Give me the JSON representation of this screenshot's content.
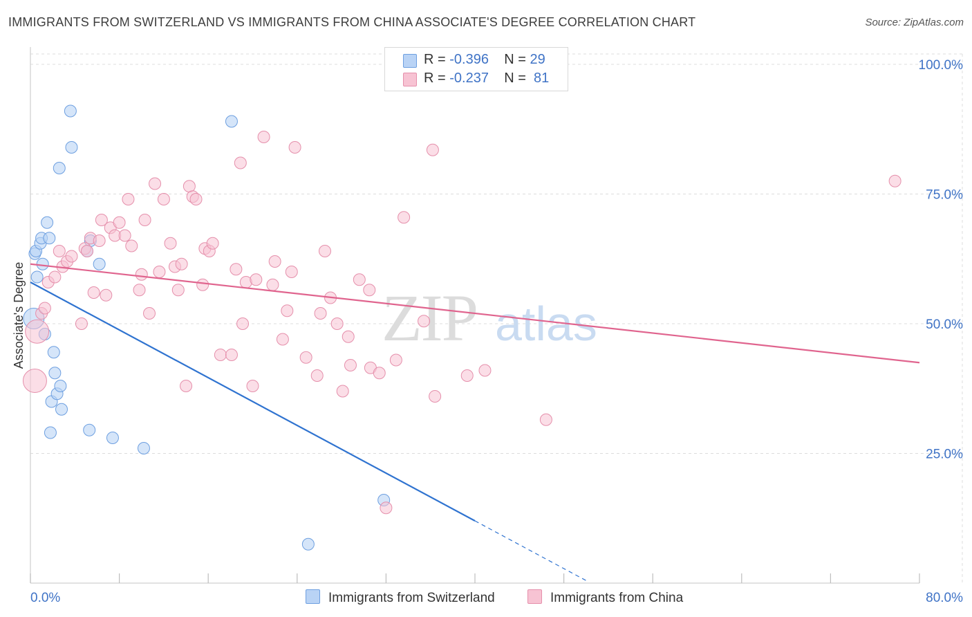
{
  "title": "IMMIGRANTS FROM SWITZERLAND VS IMMIGRANTS FROM CHINA ASSOCIATE'S DEGREE CORRELATION CHART",
  "source": "Source: ZipAtlas.com",
  "watermark": {
    "zip": "ZIP",
    "atlas": "atlas"
  },
  "legend": {
    "rows": [
      {
        "r_label": "R = ",
        "r_value": "-0.396",
        "n_label": "N = ",
        "n_value": "29"
      },
      {
        "r_label": "R = ",
        "r_value": "-0.237",
        "n_label": "N = ",
        "n_value": "81"
      }
    ]
  },
  "colors": {
    "switzerland_fill": "#b9d3f5",
    "switzerland_stroke": "#6d9fe0",
    "switzerland_line": "#2f73d0",
    "china_fill": "#f7c3d3",
    "china_stroke": "#e58fab",
    "china_line": "#e0648e",
    "axis_label_blue": "#3f73c6",
    "grid": "#dcdcdc"
  },
  "chart_data": {
    "type": "scatter",
    "title": "IMMIGRANTS FROM SWITZERLAND VS IMMIGRANTS FROM CHINA ASSOCIATE'S DEGREE CORRELATION CHART",
    "xlabel": "",
    "ylabel": "Associate's Degree",
    "xlim": [
      0,
      80
    ],
    "ylim": [
      0,
      102
    ],
    "x_tick_labels": [
      "0.0%",
      "80.0%"
    ],
    "y_ticks": [
      25,
      50,
      75,
      100
    ],
    "y_tick_labels": [
      "25.0%",
      "50.0%",
      "75.0%",
      "100.0%"
    ],
    "grid": true,
    "legend_position": "top-center",
    "series": [
      {
        "name": "Immigrants from Switzerland",
        "r": -0.396,
        "n": 29,
        "trend": {
          "x0": 0,
          "y0": 58.0,
          "x1": 40,
          "y1": 12.0,
          "dash_to_x": 50.1
        },
        "points": [
          {
            "x": 0.3,
            "y": 51.0,
            "big": true
          },
          {
            "x": 0.4,
            "y": 63.5
          },
          {
            "x": 0.5,
            "y": 64.0
          },
          {
            "x": 0.6,
            "y": 59.0
          },
          {
            "x": 0.9,
            "y": 65.5
          },
          {
            "x": 1.0,
            "y": 66.5
          },
          {
            "x": 1.1,
            "y": 61.5
          },
          {
            "x": 1.3,
            "y": 48.0
          },
          {
            "x": 1.5,
            "y": 69.5
          },
          {
            "x": 1.7,
            "y": 66.5
          },
          {
            "x": 1.8,
            "y": 29.0
          },
          {
            "x": 1.9,
            "y": 35.0
          },
          {
            "x": 2.1,
            "y": 44.5
          },
          {
            "x": 2.2,
            "y": 40.5
          },
          {
            "x": 2.4,
            "y": 36.5
          },
          {
            "x": 2.6,
            "y": 80.0
          },
          {
            "x": 2.7,
            "y": 38.0
          },
          {
            "x": 2.8,
            "y": 33.5
          },
          {
            "x": 3.6,
            "y": 91.0
          },
          {
            "x": 3.7,
            "y": 84.0
          },
          {
            "x": 5.1,
            "y": 64.0
          },
          {
            "x": 5.3,
            "y": 29.5
          },
          {
            "x": 5.4,
            "y": 66.0
          },
          {
            "x": 6.2,
            "y": 61.5
          },
          {
            "x": 7.4,
            "y": 28.0
          },
          {
            "x": 10.2,
            "y": 26.0
          },
          {
            "x": 18.1,
            "y": 89.0
          },
          {
            "x": 31.8,
            "y": 16.0
          },
          {
            "x": 25.0,
            "y": 7.5
          }
        ]
      },
      {
        "name": "Immigrants from China",
        "r": -0.237,
        "n": 81,
        "trend": {
          "x0": 0,
          "y0": 61.5,
          "x1": 80,
          "y1": 42.5
        },
        "points": [
          {
            "x": 0.4,
            "y": 39.0,
            "big": true
          },
          {
            "x": 0.6,
            "y": 48.5,
            "big": true
          },
          {
            "x": 1.0,
            "y": 52.0
          },
          {
            "x": 1.3,
            "y": 53.0
          },
          {
            "x": 1.6,
            "y": 58.0
          },
          {
            "x": 2.2,
            "y": 59.0
          },
          {
            "x": 2.6,
            "y": 64.0
          },
          {
            "x": 2.9,
            "y": 61.0
          },
          {
            "x": 3.3,
            "y": 62.0
          },
          {
            "x": 3.7,
            "y": 63.0
          },
          {
            "x": 4.6,
            "y": 50.0
          },
          {
            "x": 4.9,
            "y": 64.5
          },
          {
            "x": 5.4,
            "y": 66.5
          },
          {
            "x": 5.7,
            "y": 56.0
          },
          {
            "x": 6.2,
            "y": 66.0
          },
          {
            "x": 6.4,
            "y": 70.0
          },
          {
            "x": 6.8,
            "y": 55.5
          },
          {
            "x": 7.2,
            "y": 68.5
          },
          {
            "x": 7.6,
            "y": 67.0
          },
          {
            "x": 8.0,
            "y": 69.5
          },
          {
            "x": 8.5,
            "y": 67.0
          },
          {
            "x": 8.8,
            "y": 74.0
          },
          {
            "x": 9.1,
            "y": 65.0
          },
          {
            "x": 9.8,
            "y": 56.5
          },
          {
            "x": 10.0,
            "y": 59.5
          },
          {
            "x": 10.3,
            "y": 70.0
          },
          {
            "x": 10.7,
            "y": 52.0
          },
          {
            "x": 11.2,
            "y": 77.0
          },
          {
            "x": 11.6,
            "y": 60.0
          },
          {
            "x": 12.0,
            "y": 74.0
          },
          {
            "x": 12.6,
            "y": 65.5
          },
          {
            "x": 13.0,
            "y": 61.0
          },
          {
            "x": 13.3,
            "y": 56.5
          },
          {
            "x": 13.6,
            "y": 61.5
          },
          {
            "x": 14.0,
            "y": 38.0
          },
          {
            "x": 14.3,
            "y": 76.5
          },
          {
            "x": 14.6,
            "y": 74.5
          },
          {
            "x": 14.9,
            "y": 74.0
          },
          {
            "x": 15.5,
            "y": 57.5
          },
          {
            "x": 15.7,
            "y": 64.5
          },
          {
            "x": 16.1,
            "y": 64.0
          },
          {
            "x": 16.4,
            "y": 65.5
          },
          {
            "x": 17.1,
            "y": 44.0
          },
          {
            "x": 18.1,
            "y": 44.0
          },
          {
            "x": 18.5,
            "y": 60.5
          },
          {
            "x": 18.9,
            "y": 81.0
          },
          {
            "x": 19.1,
            "y": 50.0
          },
          {
            "x": 19.4,
            "y": 58.0
          },
          {
            "x": 20.0,
            "y": 38.0
          },
          {
            "x": 20.3,
            "y": 58.5
          },
          {
            "x": 21.0,
            "y": 86.0
          },
          {
            "x": 21.8,
            "y": 57.5
          },
          {
            "x": 22.0,
            "y": 62.0
          },
          {
            "x": 22.7,
            "y": 47.0
          },
          {
            "x": 23.1,
            "y": 52.5
          },
          {
            "x": 23.5,
            "y": 60.0
          },
          {
            "x": 23.8,
            "y": 84.0
          },
          {
            "x": 24.8,
            "y": 43.5
          },
          {
            "x": 25.8,
            "y": 40.0
          },
          {
            "x": 26.1,
            "y": 52.0
          },
          {
            "x": 26.5,
            "y": 64.0
          },
          {
            "x": 27.0,
            "y": 55.0
          },
          {
            "x": 27.6,
            "y": 50.0
          },
          {
            "x": 28.1,
            "y": 37.0
          },
          {
            "x": 28.6,
            "y": 47.5
          },
          {
            "x": 28.8,
            "y": 42.0
          },
          {
            "x": 29.6,
            "y": 58.5
          },
          {
            "x": 30.5,
            "y": 56.5
          },
          {
            "x": 30.6,
            "y": 41.5
          },
          {
            "x": 31.4,
            "y": 40.5
          },
          {
            "x": 32.0,
            "y": 14.5
          },
          {
            "x": 32.9,
            "y": 43.0
          },
          {
            "x": 33.6,
            "y": 70.5
          },
          {
            "x": 35.4,
            "y": 50.5
          },
          {
            "x": 36.2,
            "y": 83.5
          },
          {
            "x": 36.4,
            "y": 36.0
          },
          {
            "x": 39.3,
            "y": 40.0
          },
          {
            "x": 40.9,
            "y": 41.0
          },
          {
            "x": 46.4,
            "y": 31.5
          },
          {
            "x": 77.8,
            "y": 77.5
          },
          {
            "x": 5.1,
            "y": 64.0
          }
        ]
      }
    ]
  },
  "bottom_legend": {
    "items": [
      {
        "label": "Immigrants from Switzerland"
      },
      {
        "label": "Immigrants from China"
      }
    ]
  }
}
